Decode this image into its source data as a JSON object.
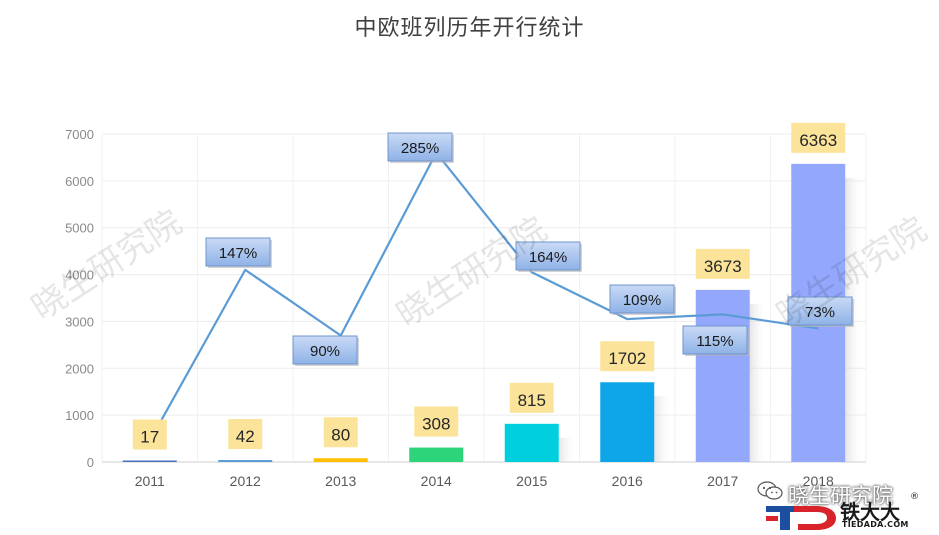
{
  "chart_data": {
    "type": "bar",
    "title": "中欧班列历年开行统计",
    "categories": [
      "2011",
      "2012",
      "2013",
      "2014",
      "2015",
      "2016",
      "2017",
      "2018"
    ],
    "values": [
      17,
      42,
      80,
      308,
      815,
      1702,
      3673,
      6363
    ],
    "bar_colors": [
      "#4472c4",
      "#5b9bd5",
      "#ffc000",
      "#2ed47a",
      "#00d0de",
      "#0ea5e9",
      "#93a8fc",
      "#93a8fc"
    ],
    "ylim": [
      0,
      7000
    ],
    "yticks": [
      0,
      1000,
      2000,
      3000,
      4000,
      5000,
      6000,
      7000
    ],
    "grid": true,
    "growth_line": {
      "labels": [
        "",
        "147%",
        "90%",
        "285%",
        "164%",
        "109%",
        "115%",
        "73%"
      ],
      "y_positions": [
        450,
        4100,
        2700,
        6600,
        4050,
        3050,
        3150,
        2850
      ],
      "color": "#5b9bd5"
    }
  },
  "watermark": {
    "text": "晓生研究院"
  },
  "footer": {
    "account": "晓生研究院",
    "brand": "铁大大",
    "registered": "®",
    "domain": "TIEDADA.COM"
  }
}
